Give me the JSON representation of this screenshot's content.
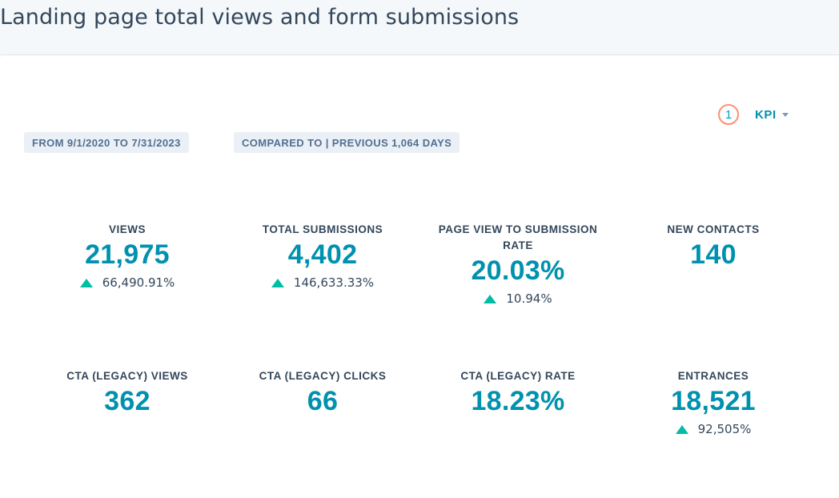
{
  "header": {
    "title": "Landing page total views and form submissions"
  },
  "controls": {
    "kpi_count": "1",
    "kpi_label": "KPI"
  },
  "filters": {
    "date_range": "FROM 9/1/2020 TO 7/31/2023",
    "comparison": "COMPARED TO | PREVIOUS 1,064 DAYS"
  },
  "colors": {
    "accent": "#0091ae",
    "positive_change": "#00bda5",
    "badge_border": "#ff8f73",
    "text": "#33475b"
  },
  "metrics": [
    {
      "label": "VIEWS",
      "value": "21,975",
      "change": "66,490.91%",
      "direction": "up"
    },
    {
      "label": "TOTAL SUBMISSIONS",
      "value": "4,402",
      "change": "146,633.33%",
      "direction": "up"
    },
    {
      "label": "PAGE VIEW TO SUBMISSION RATE",
      "value": "20.03%",
      "change": "10.94%",
      "direction": "up"
    },
    {
      "label": "NEW CONTACTS",
      "value": "140"
    },
    {
      "label": "CTA (LEGACY) VIEWS",
      "value": "362"
    },
    {
      "label": "CTA (LEGACY) CLICKS",
      "value": "66"
    },
    {
      "label": "CTA (LEGACY) RATE",
      "value": "18.23%"
    },
    {
      "label": "ENTRANCES",
      "value": "18,521",
      "change": "92,505%",
      "direction": "up"
    }
  ]
}
